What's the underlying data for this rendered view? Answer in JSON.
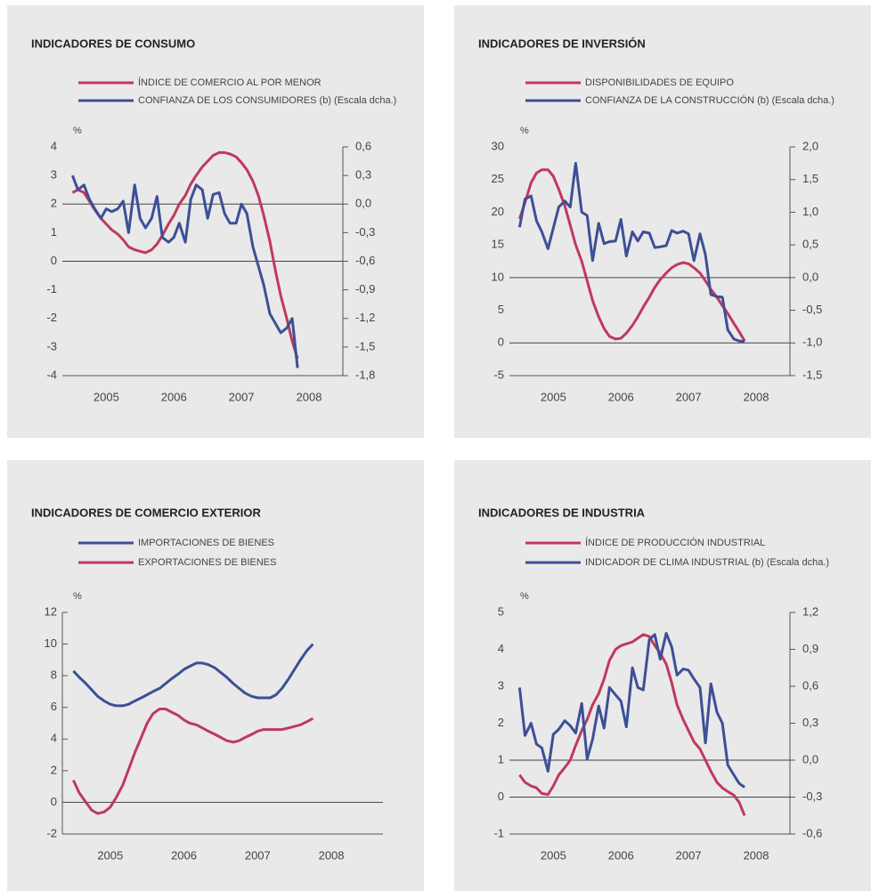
{
  "chart_data": [
    {
      "type": "line",
      "title": "INDICADORES DE CONSUMO",
      "y_label": "%",
      "x": [
        2005,
        2005.08,
        2005.17,
        2005.25,
        2005.33,
        2005.42,
        2005.5,
        2005.58,
        2005.67,
        2005.75,
        2005.83,
        2005.92,
        2006,
        2006.08,
        2006.17,
        2006.25,
        2006.33,
        2006.42,
        2006.5,
        2006.58,
        2006.67,
        2006.75,
        2006.83,
        2006.92,
        2007,
        2007.08,
        2007.17,
        2007.25,
        2007.33,
        2007.42,
        2007.5,
        2007.58,
        2007.67,
        2007.75,
        2007.83,
        2007.92,
        2008,
        2008.08,
        2008.17,
        2008.25,
        2008.33
      ],
      "xlim": [
        2004.85,
        2009
      ],
      "xticks": [
        {
          "value": 2005.5,
          "label": "2005"
        },
        {
          "value": 2006.5,
          "label": "2006"
        },
        {
          "value": 2007.5,
          "label": "2007"
        },
        {
          "value": 2008.5,
          "label": "2008"
        }
      ],
      "ylim": [
        -4,
        4
      ],
      "yticks": [
        -4,
        -3,
        -2,
        -1,
        0,
        1,
        2,
        3,
        4
      ],
      "y2lim": [
        -1.8,
        0.6
      ],
      "y2ticks": [
        {
          "value": -1.8,
          "label": "-1,8"
        },
        {
          "value": -1.5,
          "label": "-1,5"
        },
        {
          "value": -1.2,
          "label": "-1,2"
        },
        {
          "value": -0.9,
          "label": "-0,9"
        },
        {
          "value": -0.6,
          "label": "-0,6"
        },
        {
          "value": -0.3,
          "label": "-0,3"
        },
        {
          "value": 0,
          "label": "0,0"
        },
        {
          "value": 0.3,
          "label": "0,3"
        },
        {
          "value": 0.6,
          "label": "0,6"
        }
      ],
      "series": [
        {
          "name": "ÍNDICE DE COMERCIO AL POR MENOR",
          "color": "#c0395c",
          "values": [
            2.4,
            2.5,
            2.4,
            2.1,
            1.8,
            1.5,
            1.3,
            1.1,
            0.95,
            0.75,
            0.5,
            0.4,
            0.35,
            0.3,
            0.4,
            0.6,
            0.9,
            1.3,
            1.6,
            2.0,
            2.3,
            2.7,
            3.0,
            3.3,
            3.5,
            3.7,
            3.8,
            3.8,
            3.75,
            3.65,
            3.45,
            3.2,
            2.8,
            2.3,
            1.6,
            0.7,
            -0.3,
            -1.2,
            -2.0,
            -2.8,
            -3.4
          ]
        },
        {
          "name": "CONFIANZA DE LOS CONSUMIDORES (b) (Escala dcha.)",
          "color": "#3d4f96",
          "axis": "y2",
          "values": [
            0.3,
            0.15,
            0.2,
            0.05,
            -0.05,
            -0.15,
            -0.05,
            -0.08,
            -0.05,
            0.03,
            -0.3,
            0.2,
            -0.15,
            -0.25,
            -0.15,
            0.08,
            -0.35,
            -0.4,
            -0.35,
            -0.2,
            -0.4,
            0.05,
            0.2,
            0.15,
            -0.15,
            0.1,
            0.12,
            -0.1,
            -0.2,
            -0.2,
            0,
            -0.1,
            -0.45,
            -0.65,
            -0.85,
            -1.15,
            -1.25,
            -1.35,
            -1.3,
            -1.2,
            -1.72
          ]
        }
      ]
    },
    {
      "type": "line",
      "title": "INDICADORES DE INVERSIÓN",
      "y_label": "%",
      "x": [
        2005,
        2005.08,
        2005.17,
        2005.25,
        2005.33,
        2005.42,
        2005.5,
        2005.58,
        2005.67,
        2005.75,
        2005.83,
        2005.92,
        2006,
        2006.08,
        2006.17,
        2006.25,
        2006.33,
        2006.42,
        2006.5,
        2006.58,
        2006.67,
        2006.75,
        2006.83,
        2006.92,
        2007,
        2007.08,
        2007.17,
        2007.25,
        2007.33,
        2007.42,
        2007.5,
        2007.58,
        2007.67,
        2007.75,
        2007.83,
        2007.92,
        2008,
        2008.08,
        2008.17,
        2008.25,
        2008.33
      ],
      "xlim": [
        2004.85,
        2009
      ],
      "xticks": [
        {
          "value": 2005.5,
          "label": "2005"
        },
        {
          "value": 2006.5,
          "label": "2006"
        },
        {
          "value": 2007.5,
          "label": "2007"
        },
        {
          "value": 2008.5,
          "label": "2008"
        }
      ],
      "ylim": [
        -5,
        30
      ],
      "yticks": [
        -5,
        0,
        5,
        10,
        15,
        20,
        25,
        30
      ],
      "y2lim": [
        -1.5,
        2
      ],
      "y2ticks": [
        {
          "value": -1.5,
          "label": "-1,5"
        },
        {
          "value": -1,
          "label": "-1,0"
        },
        {
          "value": -0.5,
          "label": "-0,5"
        },
        {
          "value": 0,
          "label": "0,0"
        },
        {
          "value": 0.5,
          "label": "0,5"
        },
        {
          "value": 1,
          "label": "1,0"
        },
        {
          "value": 1.5,
          "label": "1,5"
        },
        {
          "value": 2,
          "label": "2,0"
        }
      ],
      "series": [
        {
          "name": "DISPONIBILIDADES DE EQUIPO",
          "color": "#c0395c",
          "values": [
            19,
            21.5,
            24.5,
            26,
            26.5,
            26.5,
            25.5,
            23.5,
            21,
            18,
            15,
            12.5,
            9.5,
            6.5,
            4,
            2.2,
            1,
            0.6,
            0.7,
            1.5,
            2.7,
            4,
            5.5,
            7,
            8.5,
            9.7,
            10.7,
            11.5,
            12,
            12.3,
            12.1,
            11.5,
            10.7,
            9.5,
            8.2,
            7,
            5.7,
            4.5,
            3,
            1.7,
            0.3
          ]
        },
        {
          "name": "CONFIANZA DE LA CONSTRUCCIÓN (b) (Escala dcha.)",
          "color": "#3d4f96",
          "axis": "y2",
          "values": [
            0.77,
            1.2,
            1.25,
            0.87,
            0.7,
            0.44,
            0.76,
            1.08,
            1.17,
            1.08,
            1.75,
            1.0,
            0.95,
            0.26,
            0.83,
            0.52,
            0.55,
            0.56,
            0.89,
            0.33,
            0.7,
            0.56,
            0.7,
            0.68,
            0.46,
            0.47,
            0.49,
            0.72,
            0.68,
            0.71,
            0.67,
            0.26,
            0.67,
            0.35,
            -0.26,
            -0.29,
            -0.3,
            -0.8,
            -0.94,
            -0.97,
            -0.98
          ]
        }
      ]
    },
    {
      "type": "line",
      "title": "INDICADORES DE COMERCIO EXTERIOR",
      "y_label": "%",
      "x": [
        2005,
        2005.08,
        2005.17,
        2005.25,
        2005.33,
        2005.42,
        2005.5,
        2005.58,
        2005.67,
        2005.75,
        2005.83,
        2005.92,
        2006,
        2006.08,
        2006.17,
        2006.25,
        2006.33,
        2006.42,
        2006.5,
        2006.58,
        2006.67,
        2006.75,
        2006.83,
        2006.92,
        2007,
        2007.08,
        2007.17,
        2007.25,
        2007.33,
        2007.42,
        2007.5,
        2007.58,
        2007.67,
        2007.75,
        2007.83,
        2007.92,
        2008,
        2008.08,
        2008.17,
        2008.25
      ],
      "xlim": [
        2004.85,
        2009.2
      ],
      "xticks": [
        {
          "value": 2005.5,
          "label": "2005"
        },
        {
          "value": 2006.5,
          "label": "2006"
        },
        {
          "value": 2007.5,
          "label": "2007"
        },
        {
          "value": 2008.5,
          "label": "2008"
        }
      ],
      "ylim": [
        -2,
        12
      ],
      "yticks": [
        -2,
        0,
        2,
        4,
        6,
        8,
        10,
        12
      ],
      "series": [
        {
          "name": "IMPORTACIONES DE BIENES",
          "color": "#3d4f96",
          "values": [
            8.3,
            7.9,
            7.5,
            7.1,
            6.7,
            6.4,
            6.2,
            6.1,
            6.1,
            6.2,
            6.4,
            6.6,
            6.8,
            7.0,
            7.2,
            7.5,
            7.8,
            8.1,
            8.4,
            8.6,
            8.8,
            8.8,
            8.7,
            8.5,
            8.2,
            7.9,
            7.5,
            7.2,
            6.9,
            6.7,
            6.6,
            6.6,
            6.6,
            6.8,
            7.2,
            7.8,
            8.4,
            9.0,
            9.6,
            10.0
          ]
        },
        {
          "name": "EXPORTACIONES DE BIENES",
          "color": "#c0395c",
          "values": [
            1.4,
            0.6,
            0,
            -0.5,
            -0.7,
            -0.6,
            -0.3,
            0.3,
            1.1,
            2.1,
            3.1,
            4.1,
            5.0,
            5.6,
            5.9,
            5.9,
            5.7,
            5.5,
            5.2,
            5.0,
            4.9,
            4.7,
            4.5,
            4.3,
            4.1,
            3.9,
            3.8,
            3.9,
            4.1,
            4.3,
            4.5,
            4.6,
            4.6,
            4.6,
            4.6,
            4.7,
            4.8,
            4.9,
            5.1,
            5.3
          ]
        }
      ]
    },
    {
      "type": "line",
      "title": "INDICADORES DE INDUSTRIA",
      "y_label": "%",
      "x": [
        2005,
        2005.08,
        2005.17,
        2005.25,
        2005.33,
        2005.42,
        2005.5,
        2005.58,
        2005.67,
        2005.75,
        2005.83,
        2005.92,
        2006,
        2006.08,
        2006.17,
        2006.25,
        2006.33,
        2006.42,
        2006.5,
        2006.58,
        2006.67,
        2006.75,
        2006.83,
        2006.92,
        2007,
        2007.08,
        2007.17,
        2007.25,
        2007.33,
        2007.42,
        2007.5,
        2007.58,
        2007.67,
        2007.75,
        2007.83,
        2007.92,
        2008,
        2008.08,
        2008.17,
        2008.25,
        2008.33
      ],
      "xlim": [
        2004.85,
        2009
      ],
      "xticks": [
        {
          "value": 2005.5,
          "label": "2005"
        },
        {
          "value": 2006.5,
          "label": "2006"
        },
        {
          "value": 2007.5,
          "label": "2007"
        },
        {
          "value": 2008.5,
          "label": "2008"
        }
      ],
      "ylim": [
        -1,
        5
      ],
      "yticks": [
        -1,
        0,
        1,
        2,
        3,
        4,
        5
      ],
      "y2lim": [
        -0.6,
        1.2
      ],
      "y2ticks": [
        {
          "value": -0.6,
          "label": "-0,6"
        },
        {
          "value": -0.3,
          "label": "-0,3"
        },
        {
          "value": 0,
          "label": "0,0"
        },
        {
          "value": 0.3,
          "label": "0,3"
        },
        {
          "value": 0.6,
          "label": "0,6"
        },
        {
          "value": 0.9,
          "label": "0,9"
        },
        {
          "value": 1.2,
          "label": "1,2"
        }
      ],
      "series": [
        {
          "name": "ÍNDICE DE PRODUCCIÓN INDUSTRIAL",
          "color": "#c0395c",
          "values": [
            0.6,
            0.4,
            0.3,
            0.25,
            0.1,
            0.07,
            0.3,
            0.6,
            0.8,
            1.0,
            1.4,
            1.8,
            2.1,
            2.5,
            2.8,
            3.2,
            3.7,
            4.0,
            4.1,
            4.15,
            4.2,
            4.3,
            4.4,
            4.35,
            4.1,
            3.9,
            3.6,
            3.1,
            2.5,
            2.1,
            1.8,
            1.5,
            1.3,
            1.0,
            0.7,
            0.4,
            0.25,
            0.15,
            0.05,
            -0.15,
            -0.5
          ]
        },
        {
          "name": "INDICADOR DE CLIMA INDUSTRIAL (b) (Escala dcha.)",
          "color": "#3d4f96",
          "axis": "y2",
          "values": [
            0.59,
            0.2,
            0.3,
            0.13,
            0.1,
            -0.09,
            0.21,
            0.25,
            0.32,
            0.28,
            0.22,
            0.46,
            0.01,
            0.17,
            0.44,
            0.26,
            0.59,
            0.53,
            0.48,
            0.27,
            0.75,
            0.59,
            0.57,
            0.98,
            1.02,
            0.82,
            1.03,
            0.92,
            0.69,
            0.74,
            0.73,
            0.66,
            0.59,
            0.14,
            0.62,
            0.39,
            0.3,
            -0.04,
            -0.12,
            -0.19,
            -0.22
          ]
        }
      ]
    }
  ]
}
